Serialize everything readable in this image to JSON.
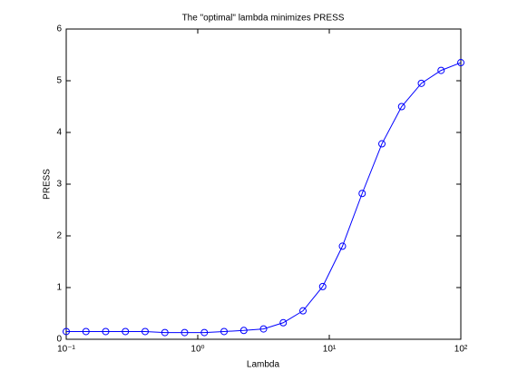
{
  "chart_data": {
    "type": "line",
    "title": "The \"optimal\" lambda minimizes PRESS",
    "xlabel": "Lambda",
    "ylabel": "PRESS",
    "x": [
      0.1,
      0.1413,
      0.1995,
      0.2818,
      0.3981,
      0.5623,
      0.7943,
      1.122,
      1.585,
      2.239,
      3.162,
      4.467,
      6.31,
      8.913,
      12.59,
      17.78,
      25.12,
      35.48,
      50.12,
      70.79,
      100
    ],
    "series": [
      {
        "name": "PRESS",
        "color": "#0000ff",
        "values": [
          0.15,
          0.15,
          0.15,
          0.15,
          0.15,
          0.13,
          0.13,
          0.13,
          0.15,
          0.17,
          0.2,
          0.32,
          0.55,
          1.02,
          1.8,
          2.82,
          3.78,
          4.5,
          4.95,
          5.2,
          5.35
        ]
      }
    ],
    "xscale": "log",
    "xlim": [
      0.1,
      100
    ],
    "xticks": [
      {
        "value": 0.1,
        "label": "10⁻¹"
      },
      {
        "value": 1,
        "label": "10⁰"
      },
      {
        "value": 10,
        "label": "10¹"
      },
      {
        "value": 100,
        "label": "10²"
      }
    ],
    "ylim": [
      0,
      6
    ],
    "yticks": [
      0,
      1,
      2,
      3,
      4,
      5,
      6
    ],
    "grid": false
  }
}
